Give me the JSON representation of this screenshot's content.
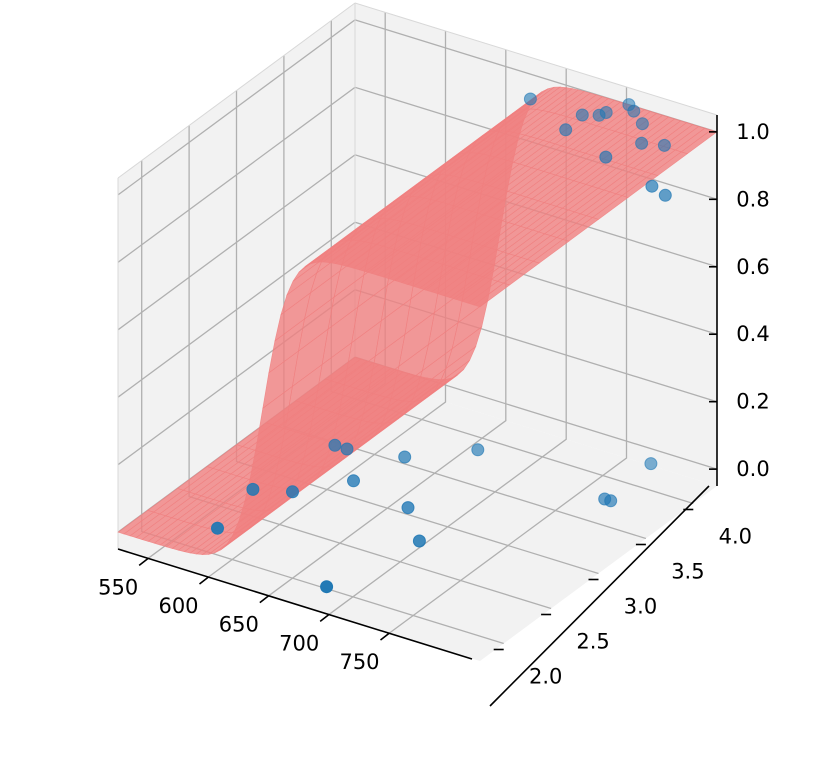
{
  "chart_data": {
    "type": "scatter",
    "title": "",
    "xlabel": "",
    "ylabel": "",
    "zlabel": "",
    "x_axis": {
      "ticks": [
        550,
        600,
        650,
        700,
        750
      ],
      "tick_labels": [
        "550",
        "600",
        "650",
        "700",
        "750"
      ]
    },
    "y_axis": {
      "ticks": [
        2.0,
        2.5,
        3.0,
        3.5,
        4.0
      ],
      "tick_labels": [
        "2.0",
        "2.5",
        "3.0",
        "3.5",
        "4.0"
      ]
    },
    "z_axis": {
      "ticks": [
        0.0,
        0.2,
        0.4,
        0.6,
        0.8,
        1.0
      ],
      "tick_labels": [
        "0.0",
        "0.2",
        "0.4",
        "0.6",
        "0.8",
        "1.0"
      ]
    },
    "grid": true,
    "surface": {
      "description_type": "logistic surface",
      "midpoint_x": 645,
      "steepness": 0.09,
      "color": "#f08080",
      "opacity": 0.8
    },
    "points": [
      {
        "x": 580,
        "y": 2.1,
        "z": 0
      },
      {
        "x": 570,
        "y": 2.6,
        "z": 0
      },
      {
        "x": 595,
        "y": 2.7,
        "z": 0
      },
      {
        "x": 583,
        "y": 3.3,
        "z": 0
      },
      {
        "x": 593,
        "y": 3.3,
        "z": 0
      },
      {
        "x": 622,
        "y": 3.0,
        "z": 0
      },
      {
        "x": 633,
        "y": 3.4,
        "z": 0
      },
      {
        "x": 675,
        "y": 2.9,
        "z": 0
      },
      {
        "x": 670,
        "y": 3.7,
        "z": 0
      },
      {
        "x": 690,
        "y": 1.85,
        "z": 0
      },
      {
        "x": 708,
        "y": 2.6,
        "z": 0
      },
      {
        "x": 783,
        "y": 3.6,
        "z": 0
      },
      {
        "x": 788,
        "y": 3.6,
        "z": 0
      },
      {
        "x": 782,
        "y": 4.1,
        "z": 0
      },
      {
        "x": 690,
        "y": 4.0,
        "z": 1
      },
      {
        "x": 733,
        "y": 4.0,
        "z": 1
      },
      {
        "x": 735,
        "y": 3.8,
        "z": 1
      },
      {
        "x": 743,
        "y": 4.05,
        "z": 1
      },
      {
        "x": 745,
        "y": 4.1,
        "z": 1
      },
      {
        "x": 752,
        "y": 4.25,
        "z": 1
      },
      {
        "x": 760,
        "y": 4.2,
        "z": 1
      },
      {
        "x": 775,
        "y": 4.1,
        "z": 1
      },
      {
        "x": 780,
        "y": 3.65,
        "z": 1
      },
      {
        "x": 790,
        "y": 3.9,
        "z": 1
      },
      {
        "x": 805,
        "y": 3.95,
        "z": 1
      },
      {
        "x": 830,
        "y": 3.5,
        "z": 1
      },
      {
        "x": 845,
        "y": 3.45,
        "z": 1
      }
    ],
    "colors": {
      "points": "#1f77b4",
      "surface": "#f08080",
      "pane": "#f2f2f2",
      "grid": "#b0b0b0"
    }
  }
}
